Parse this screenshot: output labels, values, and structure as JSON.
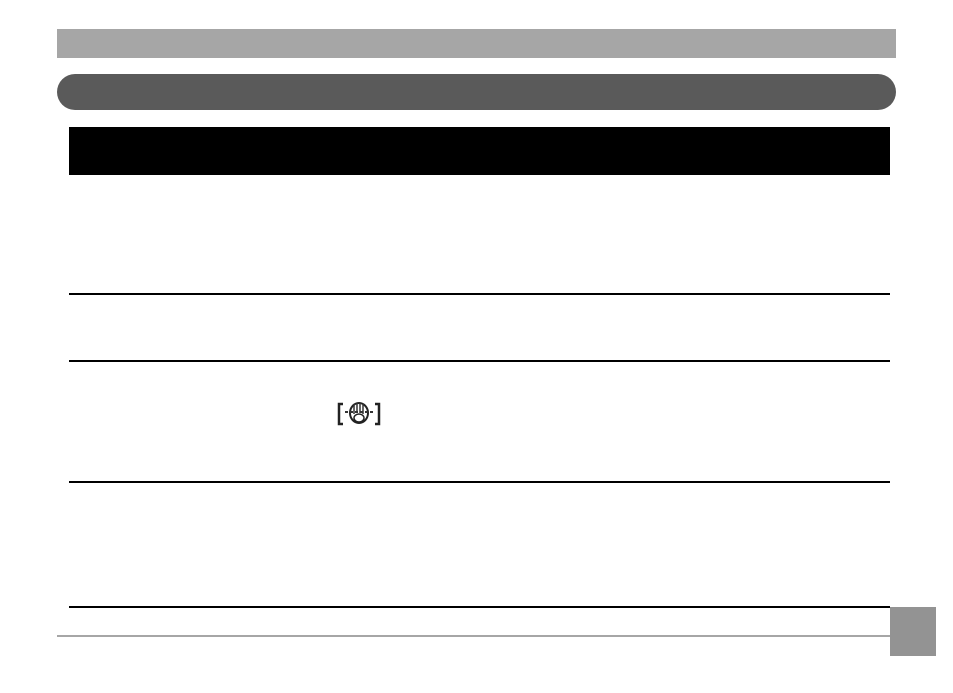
{
  "colors": {
    "header_bar": "#a6a6a6",
    "section_bar": "#5a5a5a",
    "table_header": "#000000",
    "page_tab": "#939393"
  },
  "table": {
    "rows": [
      {
        "icon": null
      },
      {
        "icon": null
      },
      {
        "icon": "anti-shake-hand-icon"
      },
      {
        "icon": null
      }
    ]
  }
}
